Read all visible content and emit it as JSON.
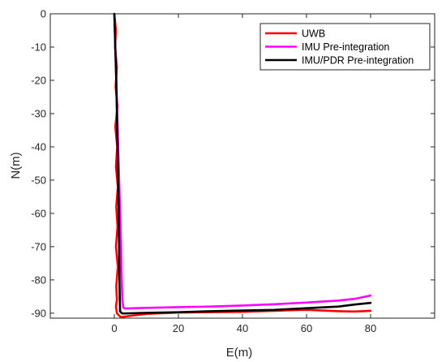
{
  "chart_data": {
    "type": "line",
    "title": "",
    "xlabel": "E(m)",
    "ylabel": "N(m)",
    "xlim": [
      -20,
      100
    ],
    "ylim": [
      -91.5,
      0
    ],
    "xticks": [
      0,
      20,
      40,
      60,
      80
    ],
    "yticks": [
      0,
      -10,
      -20,
      -30,
      -40,
      -50,
      -60,
      -70,
      -80,
      -90
    ],
    "grid": false,
    "legend_position": "top-right",
    "series": [
      {
        "name": "UWB",
        "color": "#ff0000",
        "points": [
          [
            0,
            0
          ],
          [
            0.5,
            -5
          ],
          [
            0.2,
            -10
          ],
          [
            0.8,
            -16
          ],
          [
            0.4,
            -22
          ],
          [
            1.0,
            -28
          ],
          [
            0.3,
            -34
          ],
          [
            0.9,
            -40
          ],
          [
            0.5,
            -46
          ],
          [
            1.1,
            -52
          ],
          [
            0.6,
            -58
          ],
          [
            1.0,
            -64
          ],
          [
            0.5,
            -70
          ],
          [
            1.1,
            -76
          ],
          [
            0.6,
            -82
          ],
          [
            0.8,
            -86
          ],
          [
            0.5,
            -88
          ],
          [
            0.8,
            -90
          ],
          [
            2.0,
            -91.2
          ],
          [
            5,
            -90.8
          ],
          [
            10,
            -90.2
          ],
          [
            20,
            -89.8
          ],
          [
            30,
            -89.7
          ],
          [
            40,
            -89.6
          ],
          [
            50,
            -89.3
          ],
          [
            55,
            -89.1
          ],
          [
            60,
            -89.0
          ],
          [
            65,
            -89.2
          ],
          [
            70,
            -89.4
          ],
          [
            75,
            -89.5
          ],
          [
            80,
            -89.3
          ]
        ]
      },
      {
        "name": "IMU Pre-integration",
        "color": "#ff00ff",
        "points": [
          [
            0,
            0
          ],
          [
            0.3,
            -10
          ],
          [
            0.6,
            -20
          ],
          [
            0.9,
            -30
          ],
          [
            1.2,
            -40
          ],
          [
            1.5,
            -50
          ],
          [
            1.8,
            -60
          ],
          [
            2.1,
            -70
          ],
          [
            2.3,
            -80
          ],
          [
            2.5,
            -86
          ],
          [
            2.8,
            -88.3
          ],
          [
            3.5,
            -88.6
          ],
          [
            10,
            -88.4
          ],
          [
            20,
            -88.2
          ],
          [
            30,
            -88.0
          ],
          [
            40,
            -87.7
          ],
          [
            50,
            -87.3
          ],
          [
            60,
            -86.8
          ],
          [
            70,
            -86.2
          ],
          [
            75,
            -85.7
          ],
          [
            80,
            -84.7
          ]
        ]
      },
      {
        "name": "IMU/PDR Pre-integration",
        "color": "#000000",
        "points": [
          [
            0,
            0
          ],
          [
            0.3,
            -10
          ],
          [
            0.6,
            -20
          ],
          [
            0.8,
            -30
          ],
          [
            1.0,
            -40
          ],
          [
            1.2,
            -50
          ],
          [
            1.4,
            -60
          ],
          [
            1.5,
            -70
          ],
          [
            1.6,
            -80
          ],
          [
            1.7,
            -86
          ],
          [
            1.8,
            -89.5
          ],
          [
            2.5,
            -90.1
          ],
          [
            10,
            -89.9
          ],
          [
            20,
            -89.7
          ],
          [
            30,
            -89.4
          ],
          [
            40,
            -89.2
          ],
          [
            50,
            -89.0
          ],
          [
            60,
            -88.5
          ],
          [
            70,
            -88.0
          ],
          [
            75,
            -87.4
          ],
          [
            80,
            -86.9
          ]
        ]
      }
    ]
  }
}
